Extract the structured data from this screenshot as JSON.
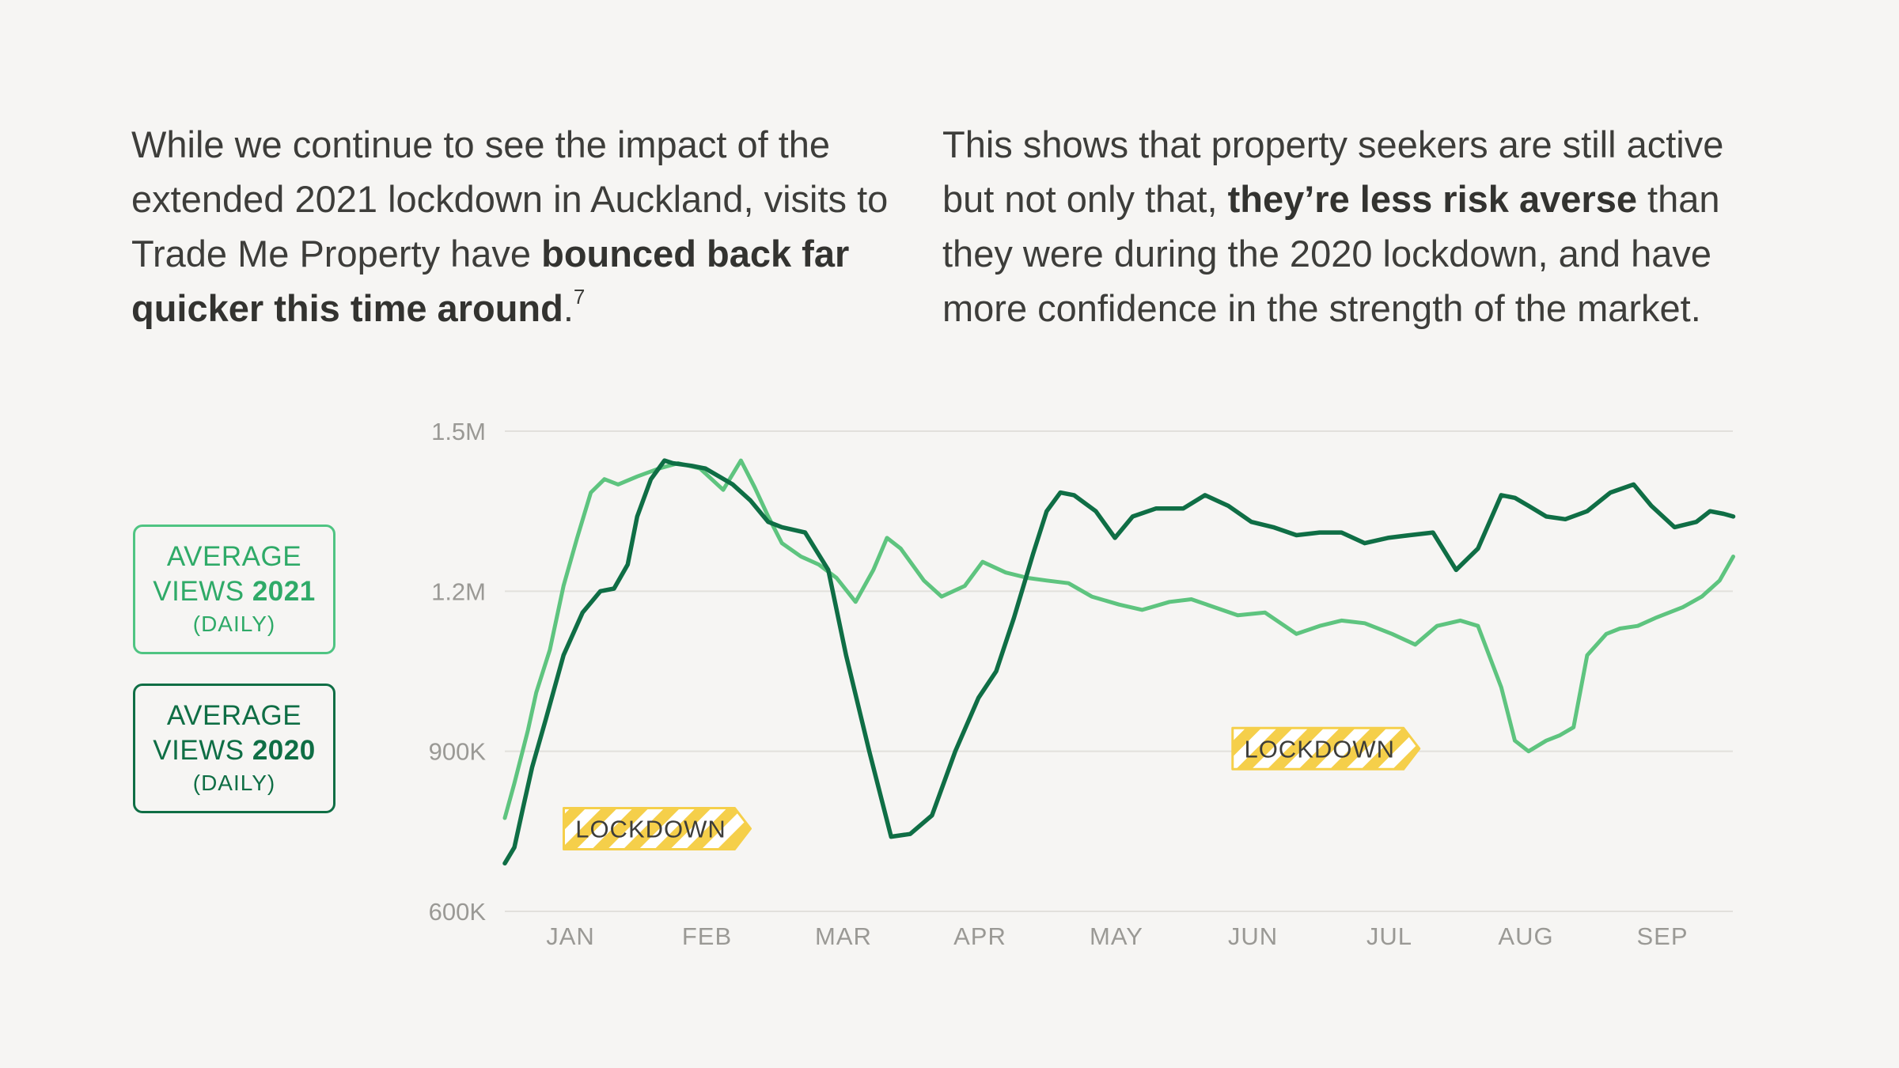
{
  "text": {
    "left_paragraph": {
      "t1": "While we continue to see the impact of the extended 2021 lockdown in Auckland, visits to Trade Me Property have ",
      "bold": "bounced back far quicker this time around",
      "t2": ".",
      "footnote": "7"
    },
    "right_paragraph": {
      "t1": "This shows that property seekers are still active but not only that, ",
      "bold": "they’re less risk averse",
      "t2": " than they were during the 2020 lockdown, and have more confidence in the strength of the market."
    }
  },
  "legend": {
    "series_2021": {
      "line1": "AVERAGE",
      "line2": "VIEWS",
      "year": "2021",
      "sub": "(DAILY)"
    },
    "series_2020": {
      "line1": "AVERAGE",
      "line2": "VIEWS",
      "year": "2020",
      "sub": "(DAILY)"
    }
  },
  "colors": {
    "series_2021": "#5ec47f",
    "series_2020": "#0f6e45",
    "lockdown_yellow": "#f5cf4a",
    "grid": "#e2e0dc",
    "axis_text": "#9a9995"
  },
  "chart_data": {
    "type": "line",
    "x_unit": "month (fractional, 0 = start of January)",
    "xlim": [
      0,
      9
    ],
    "ylim": [
      600000,
      1500000
    ],
    "x_tick_labels": [
      "JAN",
      "FEB",
      "MAR",
      "APR",
      "MAY",
      "JUN",
      "JUL",
      "AUG",
      "SEP"
    ],
    "y_ticks": [
      600000,
      900000,
      1200000,
      1500000
    ],
    "y_tick_labels": [
      "600K",
      "900K",
      "1.2M",
      "1.5M"
    ],
    "grid": true,
    "annotations": [
      {
        "text": "LOCKDOWN",
        "x": 1.0,
        "y": 755000
      },
      {
        "text": "LOCKDOWN",
        "x": 5.9,
        "y": 905000
      }
    ],
    "series": [
      {
        "name": "AVERAGE VIEWS 2021 (DAILY)",
        "color": "#5ec47f",
        "x": [
          0,
          0.07,
          0.17,
          0.23,
          0.33,
          0.43,
          0.53,
          0.63,
          0.73,
          0.83,
          0.97,
          1.13,
          1.27,
          1.43,
          1.6,
          1.73,
          1.83,
          1.93,
          2.03,
          2.17,
          2.3,
          2.43,
          2.57,
          2.7,
          2.8,
          2.9,
          3.07,
          3.2,
          3.37,
          3.5,
          3.67,
          3.83,
          3.97,
          4.13,
          4.3,
          4.5,
          4.67,
          4.87,
          5.03,
          5.2,
          5.37,
          5.57,
          5.8,
          5.97,
          6.13,
          6.3,
          6.5,
          6.67,
          6.83,
          7.0,
          7.13,
          7.3,
          7.4,
          7.5,
          7.63,
          7.73,
          7.83,
          7.93,
          8.07,
          8.17,
          8.3,
          8.43,
          8.63,
          8.77,
          8.9,
          9.0
        ],
        "y": [
          775000,
          840000,
          940000,
          1010000,
          1090000,
          1210000,
          1300000,
          1385000,
          1410000,
          1400000,
          1415000,
          1430000,
          1440000,
          1430000,
          1390000,
          1445000,
          1395000,
          1340000,
          1290000,
          1265000,
          1250000,
          1225000,
          1180000,
          1240000,
          1300000,
          1280000,
          1220000,
          1190000,
          1210000,
          1255000,
          1235000,
          1225000,
          1220000,
          1215000,
          1190000,
          1175000,
          1165000,
          1180000,
          1185000,
          1170000,
          1155000,
          1160000,
          1120000,
          1135000,
          1145000,
          1140000,
          1120000,
          1100000,
          1135000,
          1145000,
          1135000,
          1020000,
          920000,
          900000,
          920000,
          930000,
          945000,
          1080000,
          1120000,
          1130000,
          1135000,
          1150000,
          1170000,
          1190000,
          1220000,
          1265000
        ]
      },
      {
        "name": "AVERAGE VIEWS 2020 (DAILY)",
        "color": "#0f6e45",
        "x": [
          0,
          0.07,
          0.13,
          0.2,
          0.3,
          0.43,
          0.57,
          0.7,
          0.8,
          0.9,
          0.97,
          1.07,
          1.17,
          1.23,
          1.37,
          1.47,
          1.57,
          1.67,
          1.8,
          1.93,
          2.03,
          2.2,
          2.37,
          2.5,
          2.67,
          2.83,
          2.97,
          3.13,
          3.3,
          3.47,
          3.6,
          3.73,
          3.87,
          3.97,
          4.07,
          4.17,
          4.33,
          4.47,
          4.6,
          4.77,
          4.97,
          5.13,
          5.3,
          5.47,
          5.63,
          5.8,
          5.97,
          6.13,
          6.3,
          6.47,
          6.63,
          6.8,
          6.97,
          7.13,
          7.3,
          7.4,
          7.5,
          7.63,
          7.77,
          7.93,
          8.1,
          8.27,
          8.4,
          8.57,
          8.73,
          8.83,
          8.93,
          9.0
        ],
        "y": [
          690000,
          720000,
          790000,
          870000,
          960000,
          1080000,
          1160000,
          1200000,
          1205000,
          1250000,
          1340000,
          1410000,
          1445000,
          1440000,
          1435000,
          1430000,
          1415000,
          1400000,
          1370000,
          1330000,
          1320000,
          1310000,
          1240000,
          1080000,
          900000,
          740000,
          745000,
          780000,
          900000,
          1000000,
          1050000,
          1150000,
          1270000,
          1350000,
          1385000,
          1380000,
          1350000,
          1300000,
          1340000,
          1355000,
          1355000,
          1380000,
          1360000,
          1330000,
          1320000,
          1305000,
          1310000,
          1310000,
          1290000,
          1300000,
          1305000,
          1310000,
          1240000,
          1280000,
          1380000,
          1375000,
          1360000,
          1340000,
          1335000,
          1350000,
          1385000,
          1400000,
          1360000,
          1320000,
          1330000,
          1350000,
          1345000,
          1340000
        ]
      }
    ]
  }
}
